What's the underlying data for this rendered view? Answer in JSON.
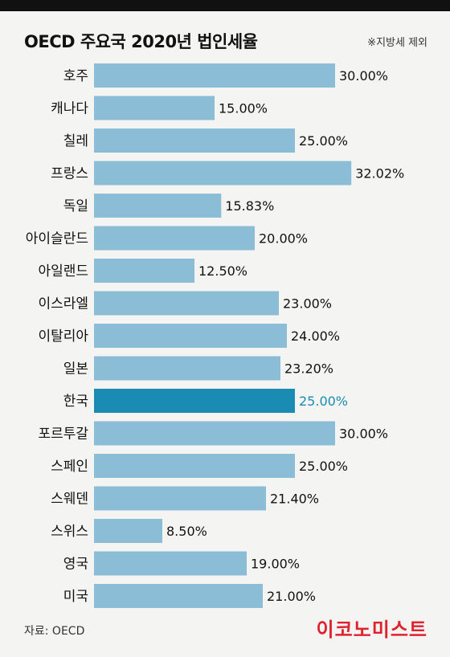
{
  "header": {
    "title": "OECD 주요국 2020년 법인세율",
    "note": "※지방세 제외"
  },
  "footer": {
    "source": "자료: OECD",
    "logo": "이코노미스트"
  },
  "colors": {
    "bar": "#8bbdd7",
    "highlight_bar": "#1a8cb4",
    "highlight_label": "#1a8cb4",
    "text": "#111111"
  },
  "chart_data": {
    "type": "bar",
    "orientation": "horizontal",
    "title": "OECD 주요국 2020년 법인세율",
    "categories": [
      "호주",
      "캐나다",
      "칠레",
      "프랑스",
      "독일",
      "아이슬란드",
      "아일랜드",
      "이스라엘",
      "이탈리아",
      "일본",
      "한국",
      "포르투갈",
      "스페인",
      "스웨덴",
      "스위스",
      "영국",
      "미국"
    ],
    "values": [
      30.0,
      15.0,
      25.0,
      32.02,
      15.83,
      20.0,
      12.5,
      23.0,
      24.0,
      23.2,
      25.0,
      30.0,
      25.0,
      21.4,
      8.5,
      19.0,
      21.0
    ],
    "value_labels": [
      "30.00%",
      "15.00%",
      "25.00%",
      "32.02%",
      "15.83%",
      "20.00%",
      "12.50%",
      "23.00%",
      "24.00%",
      "23.20%",
      "25.00%",
      "30.00%",
      "25.00%",
      "21.40%",
      "8.50%",
      "19.00%",
      "21.00%"
    ],
    "highlight": "한국",
    "xlabel": "",
    "ylabel": "",
    "grid": false,
    "legend": "none"
  }
}
